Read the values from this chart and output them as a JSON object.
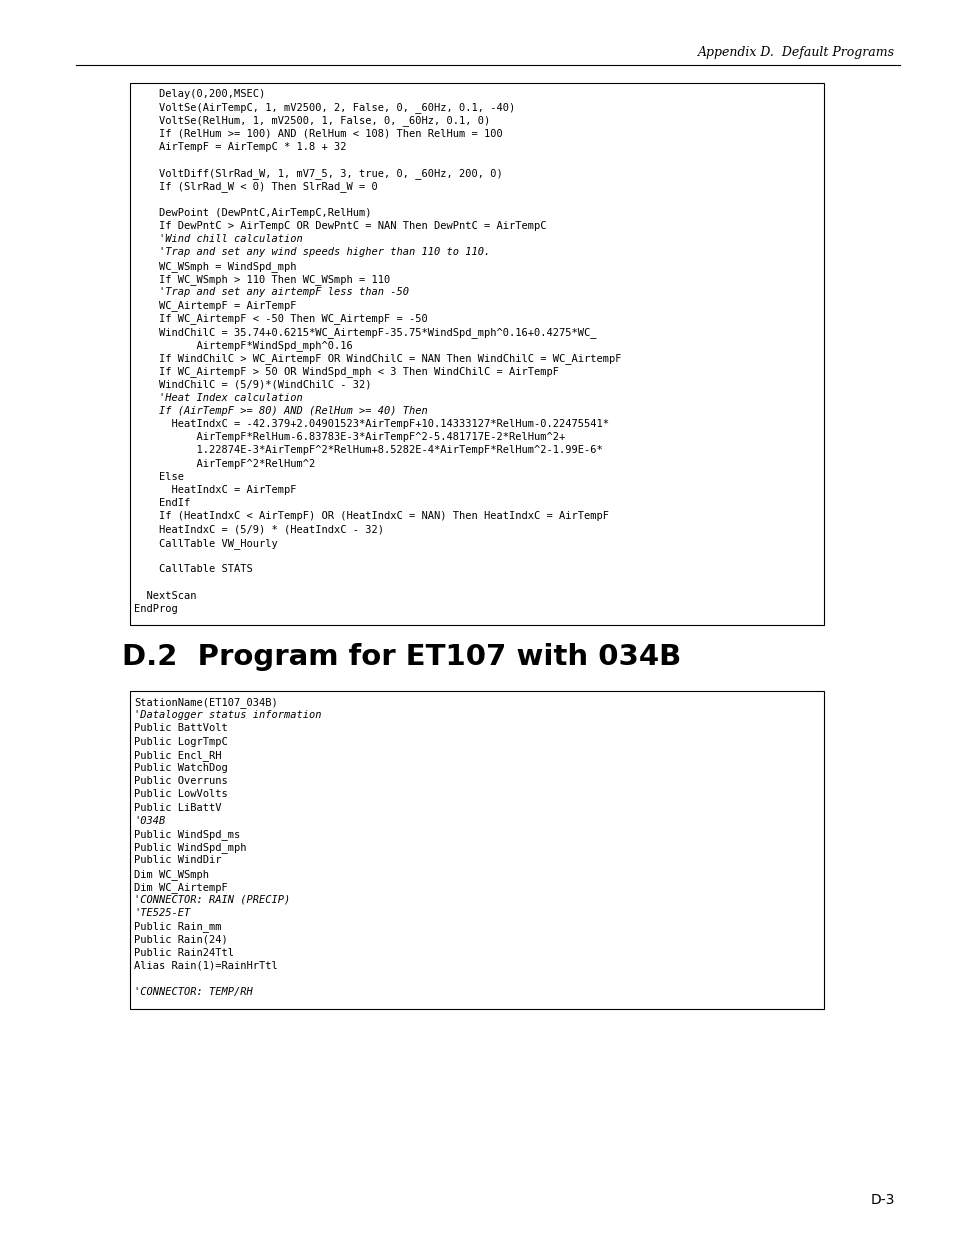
{
  "header_text": "Appendix D.  Default Programs",
  "page_number": "D-3",
  "section_title": "D.2  Program for ET107 with 034B",
  "code_block1": [
    "    Delay(0,200,MSEC)",
    "    VoltSe(AirTempC, 1, mV2500, 2, False, 0, _60Hz, 0.1, -40)",
    "    VoltSe(RelHum, 1, mV2500, 1, False, 0, _60Hz, 0.1, 0)",
    "    If (RelHum >= 100) AND (RelHum < 108) Then RelHum = 100",
    "    AirTempF = AirTempC * 1.8 + 32",
    "",
    "    VoltDiff(SlrRad_W, 1, mV7_5, 3, true, 0, _60Hz, 200, 0)",
    "    If (SlrRad_W < 0) Then SlrRad_W = 0",
    "",
    "    DewPoint (DewPntC,AirTempC,RelHum)",
    "    If DewPntC > AirTempC OR DewPntC = NAN Then DewPntC = AirTempC",
    "    'Wind chill calculation",
    "    'Trap and set any wind speeds higher than 110 to 110.",
    "    WC_WSmph = WindSpd_mph",
    "    If WC_WSmph > 110 Then WC_WSmph = 110",
    "    'Trap and set any airtempF less than -50",
    "    WC_AirtempF = AirTempF",
    "    If WC_AirtempF < -50 Then WC_AirtempF = -50",
    "    WindChilC = 35.74+0.6215*WC_AirtempF-35.75*WindSpd_mph^0.16+0.4275*WC_",
    "          AirtempF*WindSpd_mph^0.16",
    "    If WindChilC > WC_AirtempF OR WindChilC = NAN Then WindChilC = WC_AirtempF",
    "    If WC_AirtempF > 50 OR WindSpd_mph < 3 Then WindChilC = AirTempF",
    "    WindChilC = (5/9)*(WindChilC - 32)",
    "    'Heat Index calculation",
    "    If (AirTempF >= 80) AND (RelHum >= 40) Then",
    "      HeatIndxC = -42.379+2.04901523*AirTempF+10.14333127*RelHum-0.22475541*",
    "          AirTempF*RelHum-6.83783E-3*AirTempF^2-5.481717E-2*RelHum^2+",
    "          1.22874E-3*AirTempF^2*RelHum+8.5282E-4*AirTempF*RelHum^2-1.99E-6*",
    "          AirTempF^2*RelHum^2",
    "    Else",
    "      HeatIndxC = AirTempF",
    "    EndIf",
    "    If (HeatIndxC < AirTempF) OR (HeatIndxC = NAN) Then HeatIndxC = AirTempF",
    "    HeatIndxC = (5/9) * (HeatIndxC - 32)",
    "    CallTable VW_Hourly",
    "",
    "    CallTable STATS",
    "",
    "  NextScan",
    "EndProg"
  ],
  "code_block1_italic": [
    11,
    12,
    15,
    23,
    24
  ],
  "code_block2": [
    "StationName(ET107_034B)",
    "'Datalogger status information",
    "Public BattVolt",
    "Public LogrTmpC",
    "Public Encl_RH",
    "Public WatchDog",
    "Public Overruns",
    "Public LowVolts",
    "Public LiBattV",
    "'034B",
    "Public WindSpd_ms",
    "Public WindSpd_mph",
    "Public WindDir",
    "Dim WC_WSmph",
    "Dim WC_AirtempF",
    "'CONNECTOR: RAIN (PRECIP)",
    "'TE525-ET",
    "Public Rain_mm",
    "Public Rain(24)",
    "Public Rain24Ttl",
    "Alias Rain(1)=RainHrTtl",
    "",
    "'CONNECTOR: TEMP/RH"
  ],
  "code_block2_italic": [
    1,
    9,
    15,
    16,
    22
  ],
  "bg_color": "#ffffff",
  "box_border": "#000000",
  "box_bg": "#ffffff",
  "text_color": "#000000",
  "code_font_size": 7.5,
  "title_font_size": 21,
  "header_font_size": 9.0,
  "page_num_font_size": 10
}
